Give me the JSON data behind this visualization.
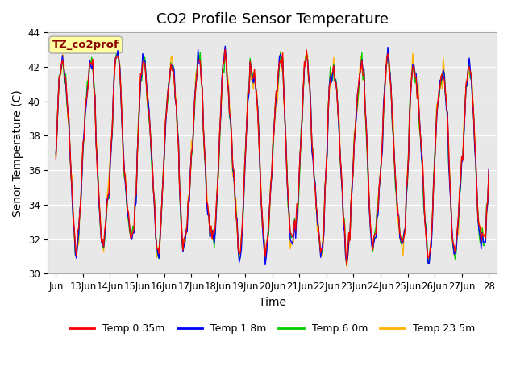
{
  "title": "CO2 Profile Sensor Temperature",
  "xlabel": "Time",
  "ylabel": "Senor Temperature (C)",
  "ylim": [
    30,
    44
  ],
  "annotation_text": "TZ_co2prof",
  "annotation_color": "#8B0000",
  "annotation_bg": "#FFFFA0",
  "legend_labels": [
    "Temp 0.35m",
    "Temp 1.8m",
    "Temp 6.0m",
    "Temp 23.5m"
  ],
  "line_colors": [
    "#FF0000",
    "#0000FF",
    "#00CC00",
    "#FFB300"
  ],
  "xtick_positions": [
    0,
    1,
    2,
    3,
    4,
    5,
    6,
    7,
    8,
    9,
    10,
    11,
    12,
    13,
    14,
    15,
    16
  ],
  "xtick_labels": [
    "Jun",
    "13Jun",
    "14Jun",
    "15Jun",
    "16Jun",
    "17Jun",
    "18Jun",
    "19Jun",
    "20Jun",
    "21Jun",
    "22Jun",
    "23Jun",
    "24Jun",
    "25Jun",
    "26Jun",
    "27Jun",
    "28"
  ],
  "ytick_positions": [
    30,
    32,
    34,
    36,
    38,
    40,
    42,
    44
  ],
  "background_color": "#E8E8E8",
  "title_fontsize": 13,
  "axis_fontsize": 10,
  "tick_fontsize": 8.5
}
